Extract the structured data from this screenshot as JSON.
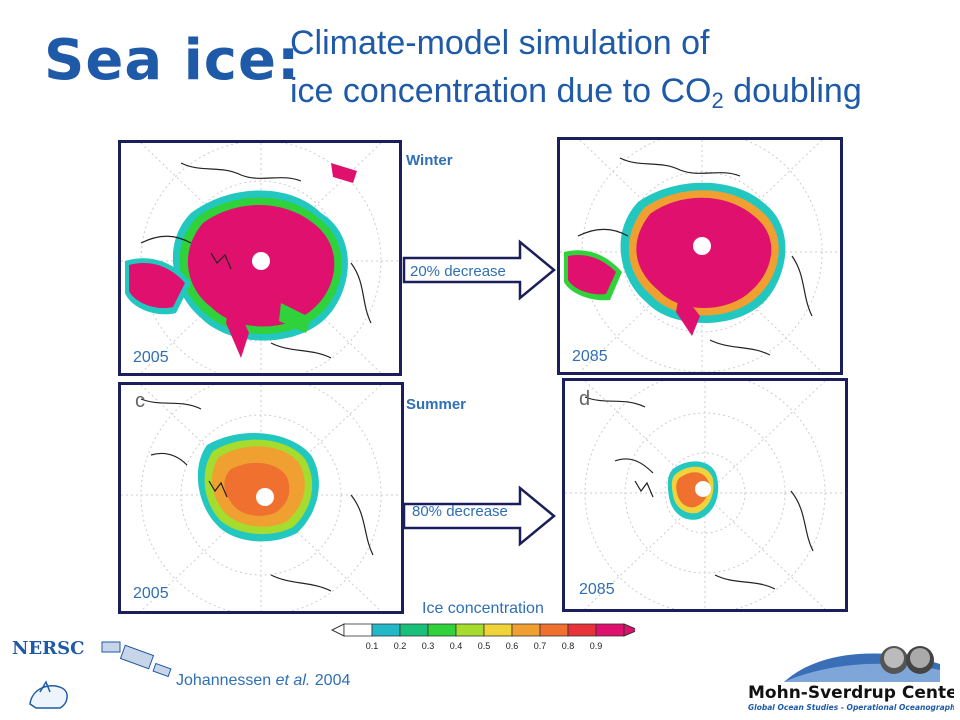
{
  "title": {
    "main": "Sea ice:",
    "line1": "Climate-model simulation of",
    "line2_prefix": "ice concentration due to CO",
    "line2_sub": "2",
    "line2_suffix": " doubling"
  },
  "panels": {
    "winter_2005": {
      "year": "2005"
    },
    "winter_2085": {
      "year": "2085"
    },
    "summer_2005": {
      "year": "2005",
      "letter": "c"
    },
    "summer_2085": {
      "year": "2085",
      "letter": "d"
    }
  },
  "seasons": {
    "winter": "Winter",
    "summer": "Summer"
  },
  "arrows": {
    "winter_change": "20% decrease",
    "summer_change": "80% decrease"
  },
  "colorbar": {
    "title": "Ice concentration",
    "ticks": [
      "0.1",
      "0.2",
      "0.3",
      "0.4",
      "0.5",
      "0.6",
      "0.7",
      "0.8",
      "0.9"
    ],
    "colors": [
      "#ffffff",
      "#23b7c8",
      "#19c07a",
      "#2fd23a",
      "#a6dc2e",
      "#f0d23a",
      "#f0a030",
      "#f07030",
      "#e8323a",
      "#e0106e"
    ]
  },
  "citation": {
    "author": "Johannessen ",
    "etal": "et al.",
    "year": " 2004"
  },
  "logos": {
    "nersc": "NERSC",
    "mohn_title": "Mohn-Sverdrup Center",
    "mohn_subtitle": "Global Ocean Studies - Operational Oceanography"
  }
}
